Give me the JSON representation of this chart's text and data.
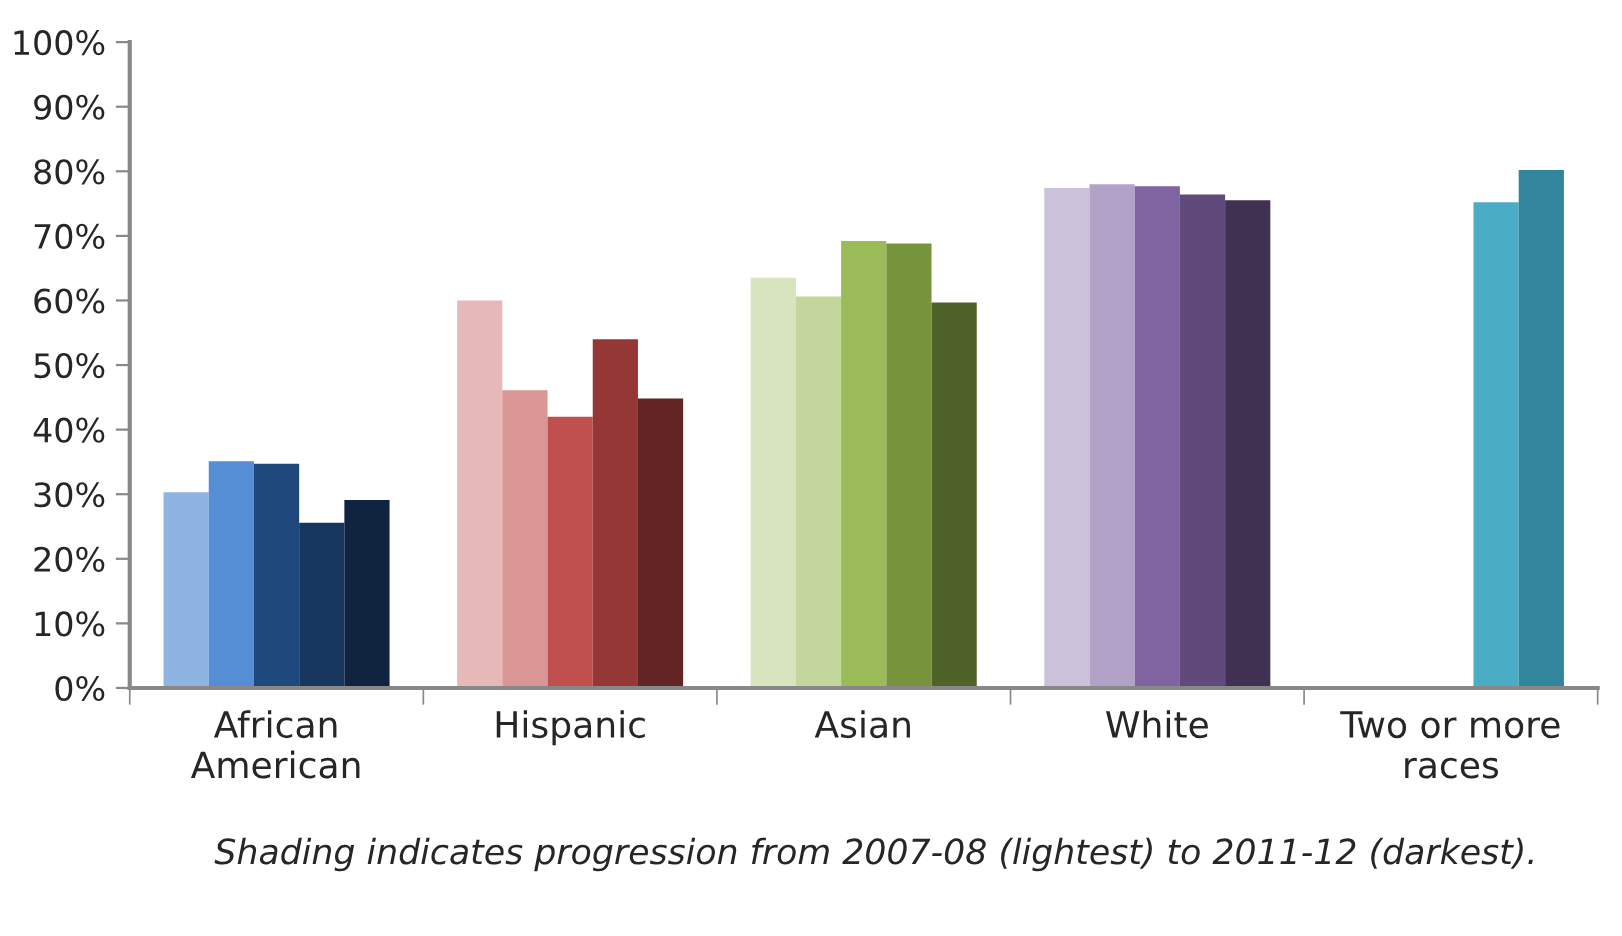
{
  "chart_data": {
    "type": "bar",
    "categories": [
      "African\nAmerican",
      "Hispanic",
      "Asian",
      "White",
      "Two or more\nraces"
    ],
    "series": [
      {
        "colors": [
          "#8eb4e3",
          "#e6b9b8",
          "#d7e4bd",
          "#ccc1da",
          null
        ],
        "values": [
          30.3,
          60.0,
          63.5,
          77.4,
          null
        ]
      },
      {
        "colors": [
          "#558ed5",
          "#d99694",
          "#c3d69b",
          "#b3a2c7",
          null
        ],
        "values": [
          35.1,
          46.1,
          60.6,
          78.0,
          null
        ]
      },
      {
        "colors": [
          "#1f497d",
          "#c0504d",
          "#9bbb59",
          "#8064a2",
          null
        ],
        "values": [
          34.7,
          42.0,
          69.2,
          77.7,
          null
        ]
      },
      {
        "colors": [
          "#17375e",
          "#953735",
          "#77933c",
          "#604a7b",
          "#4bacc6"
        ],
        "values": [
          25.6,
          54.0,
          68.8,
          76.4,
          75.2
        ]
      },
      {
        "colors": [
          "#10243f",
          "#632523",
          "#4f6228",
          "#403152",
          "#31859c"
        ],
        "values": [
          29.1,
          44.8,
          59.7,
          75.5,
          80.2
        ]
      }
    ],
    "ylim": [
      0,
      100
    ],
    "yticks": [
      {
        "value": 0,
        "label": "0%"
      },
      {
        "value": 10,
        "label": "10%"
      },
      {
        "value": 20,
        "label": "20%"
      },
      {
        "value": 30,
        "label": "30%"
      },
      {
        "value": 40,
        "label": "40%"
      },
      {
        "value": 50,
        "label": "50%"
      },
      {
        "value": 60,
        "label": "60%"
      },
      {
        "value": 70,
        "label": "70%"
      },
      {
        "value": 80,
        "label": "80%"
      },
      {
        "value": 90,
        "label": "90%"
      },
      {
        "value": 100,
        "label": "100%"
      }
    ],
    "grid": false,
    "legend": false,
    "annotations": [
      "Shading indicates progression from 2007-08 (lightest) to 2011-12 (darkest)."
    ]
  }
}
